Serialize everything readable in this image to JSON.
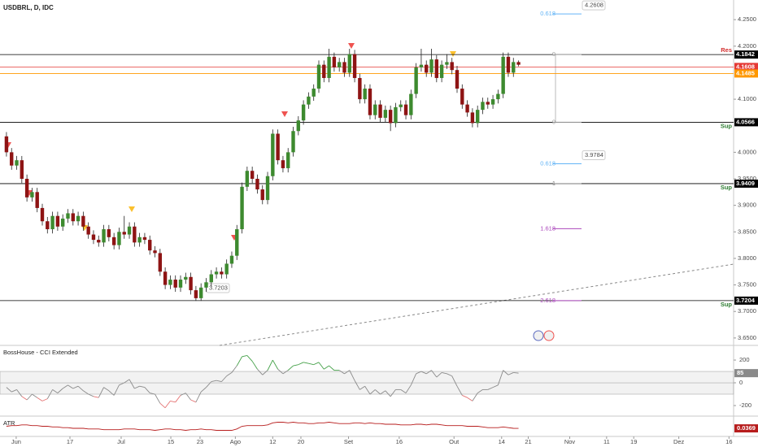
{
  "chart_data": [
    {
      "type": "candlestick",
      "title": "USDBRL, D, IDC",
      "ohlc": [
        [
          4.03,
          4.038,
          3.992,
          4.0
        ],
        [
          4.0,
          4.008,
          3.967,
          3.975
        ],
        [
          3.975,
          3.993,
          3.967,
          3.985
        ],
        [
          3.985,
          3.993,
          3.942,
          3.95
        ],
        [
          3.95,
          3.958,
          3.907,
          3.915
        ],
        [
          3.915,
          3.933,
          3.907,
          3.925
        ],
        [
          3.925,
          3.933,
          3.887,
          3.895
        ],
        [
          3.895,
          3.903,
          3.862,
          3.87
        ],
        [
          3.87,
          3.878,
          3.847,
          3.855
        ],
        [
          3.855,
          3.888,
          3.847,
          3.88
        ],
        [
          3.88,
          3.888,
          3.852,
          3.86
        ],
        [
          3.86,
          3.883,
          3.852,
          3.875
        ],
        [
          3.875,
          3.893,
          3.867,
          3.885
        ],
        [
          3.885,
          3.893,
          3.862,
          3.87
        ],
        [
          3.87,
          3.888,
          3.862,
          3.88
        ],
        [
          3.88,
          3.888,
          3.852,
          3.86
        ],
        [
          3.86,
          3.868,
          3.837,
          3.845
        ],
        [
          3.845,
          3.853,
          3.827,
          3.835
        ],
        [
          3.835,
          3.843,
          3.822,
          3.83
        ],
        [
          3.83,
          3.863,
          3.822,
          3.855
        ],
        [
          3.855,
          3.863,
          3.832,
          3.84
        ],
        [
          3.84,
          3.848,
          3.817,
          3.825
        ],
        [
          3.825,
          3.858,
          3.817,
          3.85
        ],
        [
          3.85,
          3.88,
          3.837,
          3.845
        ],
        [
          3.845,
          3.868,
          3.837,
          3.86
        ],
        [
          3.86,
          3.868,
          3.822,
          3.83
        ],
        [
          3.83,
          3.848,
          3.822,
          3.84
        ],
        [
          3.84,
          3.848,
          3.827,
          3.835
        ],
        [
          3.835,
          3.843,
          3.807,
          3.815
        ],
        [
          3.815,
          3.823,
          3.802,
          3.81
        ],
        [
          3.81,
          3.818,
          3.767,
          3.775
        ],
        [
          3.775,
          3.783,
          3.742,
          3.75
        ],
        [
          3.75,
          3.768,
          3.742,
          3.76
        ],
        [
          3.76,
          3.768,
          3.737,
          3.745
        ],
        [
          3.745,
          3.768,
          3.737,
          3.76
        ],
        [
          3.76,
          3.773,
          3.752,
          3.765
        ],
        [
          3.765,
          3.773,
          3.732,
          3.74
        ],
        [
          3.74,
          3.748,
          3.72,
          3.725
        ],
        [
          3.725,
          3.753,
          3.72,
          3.745
        ],
        [
          3.745,
          3.763,
          3.737,
          3.755
        ],
        [
          3.755,
          3.778,
          3.747,
          3.77
        ],
        [
          3.77,
          3.783,
          3.762,
          3.775
        ],
        [
          3.775,
          3.783,
          3.762,
          3.77
        ],
        [
          3.77,
          3.798,
          3.762,
          3.79
        ],
        [
          3.79,
          3.813,
          3.782,
          3.805
        ],
        [
          3.805,
          3.863,
          3.797,
          3.855
        ],
        [
          3.855,
          3.943,
          3.847,
          3.935
        ],
        [
          3.935,
          3.973,
          3.927,
          3.965
        ],
        [
          3.965,
          3.973,
          3.942,
          3.95
        ],
        [
          3.95,
          3.958,
          3.922,
          3.93
        ],
        [
          3.93,
          3.938,
          3.902,
          3.91
        ],
        [
          3.91,
          3.963,
          3.902,
          3.955
        ],
        [
          3.955,
          4.043,
          3.947,
          4.035
        ],
        [
          4.035,
          4.043,
          3.977,
          3.985
        ],
        [
          3.985,
          3.993,
          3.962,
          3.97
        ],
        [
          3.97,
          4.008,
          3.962,
          4.0
        ],
        [
          4.0,
          4.048,
          3.992,
          4.04
        ],
        [
          4.04,
          4.068,
          4.032,
          4.06
        ],
        [
          4.06,
          4.098,
          4.052,
          4.09
        ],
        [
          4.09,
          4.113,
          4.082,
          4.105
        ],
        [
          4.105,
          4.128,
          4.097,
          4.12
        ],
        [
          4.12,
          4.173,
          4.112,
          4.165
        ],
        [
          4.165,
          4.173,
          4.132,
          4.14
        ],
        [
          4.14,
          4.195,
          4.132,
          4.18
        ],
        [
          4.18,
          4.188,
          4.152,
          4.16
        ],
        [
          4.16,
          4.178,
          4.152,
          4.17
        ],
        [
          4.17,
          4.178,
          4.142,
          4.15
        ],
        [
          4.15,
          4.195,
          4.142,
          4.185
        ],
        [
          4.185,
          4.193,
          4.132,
          4.14
        ],
        [
          4.14,
          4.148,
          4.092,
          4.1
        ],
        [
          4.1,
          4.128,
          4.092,
          4.12
        ],
        [
          4.12,
          4.128,
          4.062,
          4.07
        ],
        [
          4.07,
          4.098,
          4.062,
          4.09
        ],
        [
          4.09,
          4.098,
          4.057,
          4.065
        ],
        [
          4.065,
          4.088,
          4.057,
          4.08
        ],
        [
          4.08,
          4.088,
          4.04,
          4.055
        ],
        [
          4.055,
          4.093,
          4.047,
          4.085
        ],
        [
          4.085,
          4.098,
          4.077,
          4.09
        ],
        [
          4.09,
          4.098,
          4.062,
          4.07
        ],
        [
          4.07,
          4.118,
          4.062,
          4.11
        ],
        [
          4.11,
          4.168,
          4.102,
          4.16
        ],
        [
          4.16,
          4.195,
          4.152,
          4.165
        ],
        [
          4.165,
          4.173,
          4.142,
          4.15
        ],
        [
          4.15,
          4.195,
          4.142,
          4.175
        ],
        [
          4.175,
          4.183,
          4.132,
          4.14
        ],
        [
          4.14,
          4.173,
          4.132,
          4.165
        ],
        [
          4.165,
          4.185,
          4.157,
          4.17
        ],
        [
          4.17,
          4.178,
          4.147,
          4.155
        ],
        [
          4.155,
          4.163,
          4.112,
          4.12
        ],
        [
          4.12,
          4.128,
          4.082,
          4.09
        ],
        [
          4.09,
          4.098,
          4.067,
          4.075
        ],
        [
          4.075,
          4.083,
          4.047,
          4.055
        ],
        [
          4.055,
          4.088,
          4.047,
          4.08
        ],
        [
          4.08,
          4.103,
          4.072,
          4.095
        ],
        [
          4.095,
          4.103,
          4.082,
          4.09
        ],
        [
          4.09,
          4.108,
          4.082,
          4.1
        ],
        [
          4.1,
          4.118,
          4.092,
          4.11
        ],
        [
          4.11,
          4.188,
          4.102,
          4.18
        ],
        [
          4.18,
          4.188,
          4.142,
          4.15
        ],
        [
          4.15,
          4.178,
          4.142,
          4.17
        ],
        [
          4.17,
          4.173,
          4.162,
          4.165
        ]
      ],
      "up_color": "#3d8a2f",
      "down_color": "#8e1414",
      "ylim": [
        3.636,
        4.287
      ],
      "yticks": [
        {
          "value": 4.25,
          "label": "4.2500"
        },
        {
          "value": 4.2,
          "label": "4.2000"
        },
        {
          "value": 4.1,
          "label": "4.1000"
        },
        {
          "value": 4.0,
          "label": "4.0000"
        },
        {
          "value": 3.95,
          "label": "3.9500"
        },
        {
          "value": 3.9,
          "label": "3.9000"
        },
        {
          "value": 3.85,
          "label": "3.8500"
        },
        {
          "value": 3.8,
          "label": "3.8000"
        },
        {
          "value": 3.75,
          "label": "3.7500"
        },
        {
          "value": 3.7,
          "label": "3.7000"
        },
        {
          "value": 3.65,
          "label": "3.6500"
        }
      ],
      "xlim": [
        -1.26,
        142
      ],
      "xticks": [
        {
          "value": 1.9,
          "label": "Jun"
        },
        {
          "value": 12.4,
          "label": "17"
        },
        {
          "value": 22.4,
          "label": "Jul"
        },
        {
          "value": 32.1,
          "label": "15"
        },
        {
          "value": 37.8,
          "label": "23"
        },
        {
          "value": 44.7,
          "label": "Ago"
        },
        {
          "value": 52,
          "label": "12"
        },
        {
          "value": 57.5,
          "label": "20"
        },
        {
          "value": 66.8,
          "label": "Set"
        },
        {
          "value": 76.7,
          "label": "16"
        },
        {
          "value": 87.4,
          "label": "Out"
        },
        {
          "value": 96.7,
          "label": "14"
        },
        {
          "value": 101.9,
          "label": "21"
        },
        {
          "value": 110,
          "label": "Nov"
        },
        {
          "value": 117.2,
          "label": "11"
        },
        {
          "value": 122.5,
          "label": "19"
        },
        {
          "value": 131.3,
          "label": "Dez"
        },
        {
          "value": 141.1,
          "label": "16"
        }
      ],
      "levels": [
        {
          "value": 4.1842,
          "label": "4.1842",
          "color": "#000000",
          "tag": "Res",
          "tag_color": "#d32f2f"
        },
        {
          "value": 4.1608,
          "label": "4.1608",
          "color": "#e53935"
        },
        {
          "value": 4.1485,
          "label": "4.1485",
          "color": "#ff9800"
        },
        {
          "value": 4.0566,
          "label": "4.0566",
          "color": "#000000",
          "tag": "Sup",
          "tag_color": "#2e7d32"
        },
        {
          "value": 3.9409,
          "label": "3.9409",
          "color": "#000000",
          "tag": "Sup",
          "tag_color": "#2e7d32"
        },
        {
          "value": 3.7204,
          "label": "3.7204",
          "color": "#000000",
          "tag": "Sup",
          "tag_color": "#2e7d32"
        }
      ],
      "fib": [
        {
          "name": "0.618",
          "value": 4.2608,
          "label": "4.2608",
          "color": "#64b5f6"
        },
        {
          "name": "0",
          "value": 4.1842,
          "color": "#9e9e9e"
        },
        {
          "name": "0",
          "value": 4.0566,
          "color": "#9e9e9e"
        },
        {
          "name": "0.618",
          "value": 3.9784,
          "label": "3.9784",
          "color": "#64b5f6"
        },
        {
          "name": "1",
          "value": 3.9409,
          "color": "#787878"
        },
        {
          "name": "1.618",
          "value": 3.856,
          "color": "#ab47bc"
        },
        {
          "name": "2.618",
          "value": 3.7204,
          "color": "#ab47bc"
        }
      ],
      "annotation": {
        "value": 3.7203,
        "label": "3.7203"
      }
    },
    {
      "type": "line",
      "title": "BossHouse - CCI Extended",
      "values": [
        -40,
        -80,
        -60,
        -120,
        -150,
        -100,
        -130,
        -160,
        -140,
        -60,
        -90,
        -50,
        -20,
        -50,
        -30,
        -70,
        -100,
        -120,
        -130,
        -40,
        -70,
        -110,
        -20,
        0,
        30,
        -50,
        -30,
        -40,
        -90,
        -100,
        -180,
        -220,
        -160,
        -170,
        -110,
        -90,
        -150,
        -170,
        -80,
        -40,
        10,
        20,
        10,
        60,
        90,
        150,
        230,
        240,
        190,
        120,
        70,
        110,
        200,
        120,
        80,
        110,
        150,
        160,
        180,
        170,
        160,
        180,
        120,
        150,
        110,
        110,
        80,
        110,
        20,
        -60,
        -30,
        -100,
        -60,
        -100,
        -70,
        -120,
        -60,
        -60,
        -90,
        -20,
        80,
        100,
        80,
        110,
        50,
        90,
        80,
        60,
        -30,
        -110,
        -130,
        -160,
        -90,
        -60,
        -60,
        -40,
        -20,
        110,
        70,
        90,
        85
      ],
      "bands": [
        -100,
        100
      ],
      "ylim": [
        -293,
        329
      ],
      "yticks": [
        200,
        0,
        -200
      ],
      "color": "#8a8a8a",
      "up_color": "#43a047",
      "down_color": "#e57373"
    },
    {
      "type": "line",
      "title": "ATR",
      "values": [
        0.04,
        0.041,
        0.041,
        0.042,
        0.042,
        0.041,
        0.041,
        0.04,
        0.04,
        0.039,
        0.039,
        0.038,
        0.038,
        0.037,
        0.037,
        0.037,
        0.036,
        0.036,
        0.036,
        0.035,
        0.035,
        0.035,
        0.035,
        0.036,
        0.036,
        0.036,
        0.035,
        0.035,
        0.035,
        0.034,
        0.035,
        0.036,
        0.036,
        0.035,
        0.035,
        0.034,
        0.035,
        0.035,
        0.036,
        0.035,
        0.035,
        0.034,
        0.034,
        0.034,
        0.034,
        0.036,
        0.04,
        0.041,
        0.041,
        0.041,
        0.041,
        0.042,
        0.045,
        0.046,
        0.046,
        0.045,
        0.046,
        0.045,
        0.045,
        0.044,
        0.044,
        0.045,
        0.045,
        0.046,
        0.045,
        0.044,
        0.044,
        0.044,
        0.045,
        0.045,
        0.044,
        0.045,
        0.044,
        0.044,
        0.043,
        0.043,
        0.043,
        0.042,
        0.042,
        0.042,
        0.043,
        0.043,
        0.042,
        0.043,
        0.043,
        0.042,
        0.041,
        0.041,
        0.041,
        0.041,
        0.04,
        0.04,
        0.04,
        0.039,
        0.038,
        0.038,
        0.038,
        0.039,
        0.038,
        0.037,
        0.0369
      ],
      "ylim": [
        0.025,
        0.055
      ],
      "color": "#b71c1c"
    }
  ]
}
